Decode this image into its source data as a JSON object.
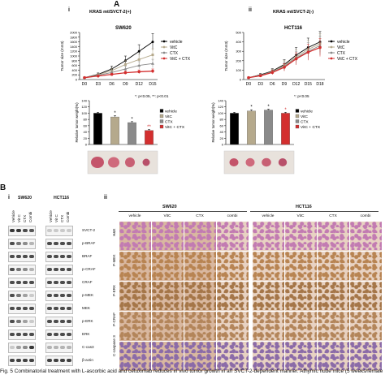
{
  "panelA": {
    "letter": "A",
    "i": {
      "numeral": "i",
      "header": "KRAS mt/SVCT-2(+)",
      "cell_line": "SW620",
      "ylabel": "Tumor size (mm3)",
      "bar_ylabel": "Relative tumor weight(%)",
      "pvalue_note": "*: p<0.05, **: p<0.01"
    },
    "ii": {
      "numeral": "ii",
      "header": "KRAS mt/SVCT-2(-)",
      "cell_line": "HCT116",
      "ylabel": "Tumor size (mm3)",
      "bar_ylabel": "Relative tumor weight(%)",
      "pvalue_note": "*: p<0.05"
    },
    "legend": [
      "vehicle",
      "VitC",
      "CTX",
      "VitC + CTX"
    ],
    "bar_legend": [
      "vehicle",
      "VitC",
      "CTX",
      "VitC + CTX"
    ]
  },
  "panelB": {
    "letter": "B",
    "i": {
      "numeral": "i",
      "sw620": "SW620",
      "hct116": "HCT116",
      "lanes": [
        "Vehicle",
        "Vit C",
        "CTX",
        "Combi"
      ],
      "proteins": [
        "SVCT-2",
        "p-BRAF",
        "BRAF",
        "p-CRAF",
        "CRAF",
        "p-MEK",
        "MEK",
        "p-ERK",
        "ERK",
        "C-cas3",
        "β-actin"
      ]
    },
    "ii": {
      "numeral": "ii",
      "sw620": "SW620",
      "hct116": "HCT116",
      "columns": [
        "vehicle",
        "VitC",
        "CTX",
        "combi",
        "vehicle",
        "VitC",
        "CTX",
        "combi"
      ],
      "rows": [
        "H&E",
        "P-MEK",
        "P-ERK",
        "P-CRAF",
        "C-caspase 3"
      ]
    }
  },
  "caption": "Fig. 5  Combinatorial treatment with L-ascorbic acid and cetuximab reduces in vivo tumor growth in an SVCT-2-dependent manner. Athymic nude mice (5 weeks/female",
  "colors": {
    "vehicle": "#000000",
    "VitC": "#b5a98c",
    "CTX": "#8a8a8a",
    "combi": "#d32f2f",
    "ihc_pink": "#c77bb0",
    "ihc_brown": "#b6834e"
  },
  "chart_data": [
    {
      "type": "line",
      "title": "SW620",
      "ylabel": "Tumor size (mm3)",
      "x": [
        "D0",
        "D3",
        "D6",
        "D9",
        "D12",
        "D15"
      ],
      "ylim": [
        0,
        2000
      ],
      "yticks": [
        0,
        200,
        400,
        600,
        800,
        1000,
        1200,
        1400,
        1600,
        1800,
        2000
      ],
      "series": [
        {
          "name": "vehicle",
          "values": [
            80,
            220,
            450,
            800,
            1200,
            1600
          ],
          "err": [
            20,
            60,
            120,
            200,
            280,
            350
          ]
        },
        {
          "name": "VitC",
          "values": [
            80,
            200,
            380,
            640,
            850,
            1050
          ],
          "err": [
            20,
            50,
            100,
            160,
            220,
            260
          ]
        },
        {
          "name": "CTX",
          "values": [
            80,
            180,
            300,
            450,
            600,
            680
          ],
          "err": [
            20,
            40,
            80,
            120,
            160,
            180
          ]
        },
        {
          "name": "VitC + CTX",
          "values": [
            80,
            150,
            220,
            290,
            330,
            360
          ],
          "err": [
            15,
            30,
            50,
            70,
            80,
            90
          ]
        }
      ]
    },
    {
      "type": "line",
      "title": "HCT116",
      "ylabel": "Tumor size (mm3)",
      "x": [
        "D0",
        "D3",
        "D6",
        "D9",
        "D12",
        "D15",
        "D18"
      ],
      "ylim": [
        0,
        500
      ],
      "yticks": [
        0,
        100,
        200,
        300,
        400,
        500
      ],
      "series": [
        {
          "name": "vehicle",
          "values": [
            20,
            50,
            90,
            160,
            260,
            340,
            400
          ],
          "err": [
            5,
            15,
            25,
            50,
            80,
            100,
            110
          ]
        },
        {
          "name": "VitC",
          "values": [
            20,
            45,
            85,
            150,
            240,
            320,
            380
          ],
          "err": [
            5,
            15,
            25,
            50,
            75,
            95,
            105
          ]
        },
        {
          "name": "CTX",
          "values": [
            20,
            45,
            80,
            140,
            230,
            300,
            360
          ],
          "err": [
            5,
            15,
            25,
            45,
            70,
            90,
            100
          ]
        },
        {
          "name": "VitC + CTX",
          "values": [
            20,
            40,
            75,
            130,
            220,
            290,
            340
          ],
          "err": [
            5,
            12,
            22,
            40,
            65,
            85,
            95
          ]
        }
      ]
    },
    {
      "type": "bar",
      "title": "",
      "ylabel": "Relative tumor weight(%)",
      "categories": [
        "vehicle",
        "VitC",
        "CTX",
        "VitC + CTX"
      ],
      "values": [
        100,
        88,
        70,
        45
      ],
      "err": [
        3,
        4,
        3,
        3
      ],
      "sig": [
        "",
        "*",
        "*",
        "**"
      ],
      "ylim": [
        0,
        140
      ],
      "yticks": [
        0,
        20,
        40,
        60,
        80,
        100,
        120,
        140
      ]
    },
    {
      "type": "bar",
      "title": "",
      "ylabel": "Relative tumor weight(%)",
      "categories": [
        "vehicle",
        "VitC",
        "CTX",
        "VitC + CTX"
      ],
      "values": [
        100,
        107,
        110,
        100
      ],
      "err": [
        3,
        4,
        3,
        3
      ],
      "sig": [
        "",
        "*",
        "*",
        "*"
      ],
      "ylim": [
        0,
        140
      ],
      "yticks": [
        0,
        20,
        40,
        60,
        80,
        100,
        120,
        140
      ]
    }
  ]
}
